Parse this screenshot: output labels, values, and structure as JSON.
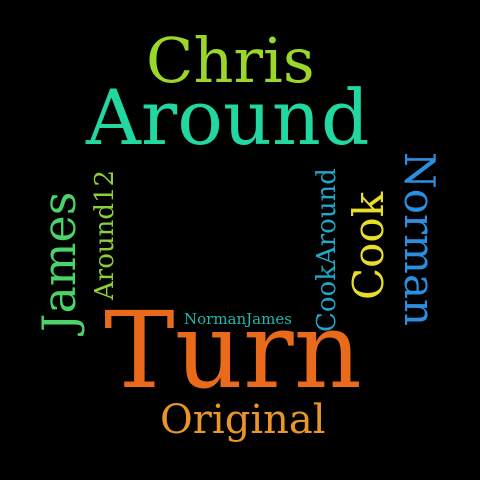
{
  "words": [
    {
      "key": "chris",
      "text": "Chris",
      "color": "#9bd62a"
    },
    {
      "key": "around",
      "text": "Around",
      "color": "#22d7a0"
    },
    {
      "key": "james",
      "text": "James",
      "color": "#4ad36a"
    },
    {
      "key": "around12",
      "text": "Around12",
      "color": "#8ccf3a"
    },
    {
      "key": "cookaround",
      "text": "CookAround",
      "color": "#20a8c8"
    },
    {
      "key": "cook",
      "text": "Cook",
      "color": "#e8de2a"
    },
    {
      "key": "norman",
      "text": "Norman",
      "color": "#2a8fe0"
    },
    {
      "key": "normanjames",
      "text": "NormanJames",
      "color": "#1fb8aa"
    },
    {
      "key": "turn",
      "text": "Turn",
      "color": "#e86a1a"
    },
    {
      "key": "original",
      "text": "Original",
      "color": "#e8962a"
    }
  ]
}
